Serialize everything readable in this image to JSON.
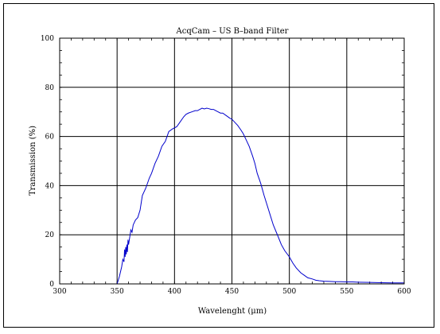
{
  "chart_data": {
    "type": "line",
    "title": "AcqCam – US B–band Filter",
    "xlabel": "Wavelenght (μm)",
    "ylabel": "Transmission (%)",
    "xlim": [
      300,
      600
    ],
    "ylim": [
      0,
      100
    ],
    "x_ticks": [
      300,
      350,
      400,
      450,
      500,
      550,
      600
    ],
    "y_ticks": [
      0,
      20,
      40,
      60,
      80,
      100
    ],
    "x_tick_labels": [
      "300",
      "350",
      "400",
      "450",
      "500",
      "550",
      "600"
    ],
    "y_tick_labels": [
      "0",
      "20",
      "40",
      "60",
      "80",
      "100"
    ],
    "grid": true,
    "series": [
      {
        "color": "#0000cc",
        "x": [
          350,
          352,
          354,
          355,
          356,
          356.5,
          357,
          357.5,
          358,
          358.5,
          359,
          359.5,
          360,
          361,
          362,
          363,
          364,
          366,
          368,
          370,
          372,
          375,
          378,
          380,
          383,
          386,
          389,
          392,
          395,
          398,
          400,
          402,
          405,
          408,
          410,
          412,
          415,
          418,
          420,
          422,
          424,
          426,
          428,
          430,
          432,
          434,
          436,
          438,
          440,
          442,
          445,
          448,
          450,
          452,
          455,
          458,
          460,
          462,
          465,
          468,
          470,
          472,
          475,
          478,
          480,
          483,
          486,
          490,
          493,
          496,
          500,
          503,
          506,
          510,
          513,
          516,
          520,
          523,
          526,
          530,
          535,
          540,
          545,
          550,
          555,
          560,
          570,
          580,
          590,
          600
        ],
        "values": [
          0,
          3,
          7,
          10,
          9,
          14,
          11,
          15,
          12,
          16,
          13,
          18,
          16,
          19,
          22,
          21,
          24,
          26,
          27,
          30,
          36,
          39,
          43,
          45,
          49,
          52,
          56,
          58,
          62,
          63,
          63.5,
          64,
          66,
          68,
          69,
          69.5,
          70,
          70.5,
          70.5,
          71,
          71.5,
          71.2,
          71.5,
          71.3,
          71,
          71,
          70.5,
          70,
          69.5,
          69.5,
          68.5,
          67.5,
          67,
          66,
          64.5,
          62.5,
          61,
          59,
          56,
          52,
          49,
          45,
          41,
          36,
          33,
          28.5,
          24,
          19.5,
          16,
          13.5,
          11,
          8.5,
          6.5,
          4.5,
          3.5,
          2.5,
          2,
          1.5,
          1.3,
          1.1,
          1,
          0.9,
          0.9,
          0.8,
          0.8,
          0.7,
          0.6,
          0.5,
          0.4,
          0.4
        ]
      }
    ]
  }
}
